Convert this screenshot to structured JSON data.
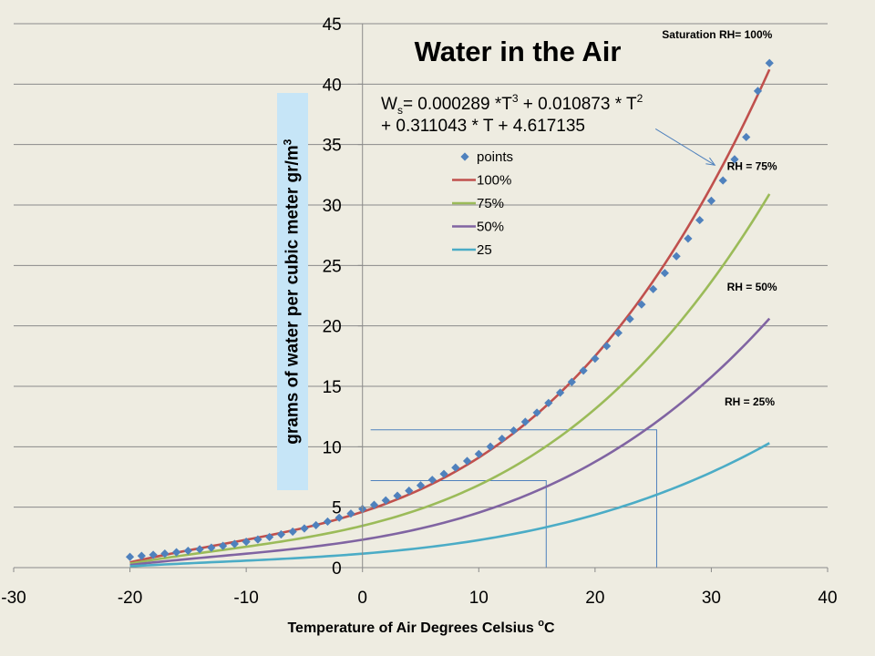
{
  "chart_data": {
    "type": "line",
    "title": "Water in the Air",
    "xlabel": "Temperature of Air  Degrees Celsius  ",
    "xlabel_unit_sup": "o",
    "xlabel_unit": "C",
    "ylabel": "grams of water per cubic meter  gr/m",
    "ylabel_sup": "3",
    "xlim": [
      -30,
      40
    ],
    "ylim": [
      0,
      45
    ],
    "x_ticks": [
      "-30",
      "-20",
      "-10",
      "0",
      "10",
      "20",
      "30",
      "40"
    ],
    "y_ticks": [
      "0",
      "5",
      "10",
      "15",
      "20",
      "25",
      "30",
      "35",
      "40",
      "45"
    ],
    "grid": "horizontal",
    "formula": {
      "line1_prefix": "W",
      "line1_sub": "s",
      "line1_a": "= 0.000289 *T",
      "line1_sup_a": "3",
      "line1_b": " + 0.010873 * T",
      "line1_sup_b": "2",
      "line2": "+ 0.311043 * T + 4.617135"
    },
    "coefficients": [
      0.000289,
      0.010873,
      0.311043,
      4.617135
    ],
    "x_range": [
      -20,
      35
    ],
    "legend": {
      "position": "center",
      "entries": [
        {
          "label": "points",
          "color": "#4f81bd",
          "marker": "diamond"
        },
        {
          "label": "100%",
          "color": "#c0504d",
          "marker": "line"
        },
        {
          "label": "75%",
          "color": "#9bbb59",
          "marker": "line"
        },
        {
          "label": "50%",
          "color": "#8064a2",
          "marker": "line"
        },
        {
          "label": "25",
          "color": "#4bacc6",
          "marker": "line"
        }
      ]
    },
    "series": [
      {
        "name": "100%",
        "factor": 1.0,
        "color": "#c0504d"
      },
      {
        "name": "75%",
        "factor": 0.75,
        "color": "#9bbb59"
      },
      {
        "name": "50%",
        "factor": 0.5,
        "color": "#8064a2"
      },
      {
        "name": "25",
        "factor": 0.25,
        "color": "#4bacc6"
      }
    ],
    "points": {
      "name": "points",
      "color": "#4f81bd",
      "x": [
        -20,
        -19,
        -18,
        -17,
        -16,
        -15,
        -14,
        -13,
        -12,
        -11,
        -10,
        -9,
        -8,
        -7,
        -6,
        -5,
        -4,
        -3,
        -2,
        -1,
        0,
        1,
        2,
        3,
        4,
        5,
        6,
        7,
        8,
        9,
        10,
        11,
        12,
        13,
        14,
        15,
        16,
        17,
        18,
        19,
        20,
        21,
        22,
        23,
        24,
        25,
        26,
        27,
        28,
        29,
        30,
        31,
        32,
        33,
        34,
        35
      ],
      "y": [
        0.89,
        0.97,
        1.06,
        1.16,
        1.27,
        1.39,
        1.52,
        1.65,
        1.8,
        1.96,
        2.14,
        2.33,
        2.53,
        2.75,
        2.98,
        3.24,
        3.51,
        3.81,
        4.13,
        4.47,
        4.85,
        5.19,
        5.56,
        5.95,
        6.36,
        6.8,
        7.26,
        7.75,
        8.27,
        8.82,
        9.4,
        10.01,
        10.66,
        11.34,
        12.06,
        12.82,
        13.62,
        14.47,
        15.36,
        16.3,
        17.29,
        18.33,
        19.42,
        20.57,
        21.77,
        23.04,
        24.37,
        25.76,
        27.22,
        28.75,
        30.35,
        32.03,
        33.78,
        35.62,
        39.43,
        41.74
      ]
    },
    "annotations": [
      {
        "text": "Saturation  RH= 100%",
        "x": 30.5,
        "y": 43.8
      },
      {
        "text": "RH = 75%",
        "x": 33.5,
        "y": 32.9
      },
      {
        "text": "RH = 50%",
        "x": 33.5,
        "y": 22.9
      },
      {
        "text": "RH = 25%",
        "x": 33.3,
        "y": 13.4
      }
    ],
    "arrow": {
      "from": [
        25.2,
        36.3
      ],
      "to": [
        30.3,
        33.3
      ]
    },
    "reference_lines": [
      {
        "x_low": 0.7,
        "x_high": 15.8,
        "y": 7.2
      },
      {
        "x_low": 0.7,
        "x_high": 25.3,
        "y": 11.4
      }
    ]
  }
}
